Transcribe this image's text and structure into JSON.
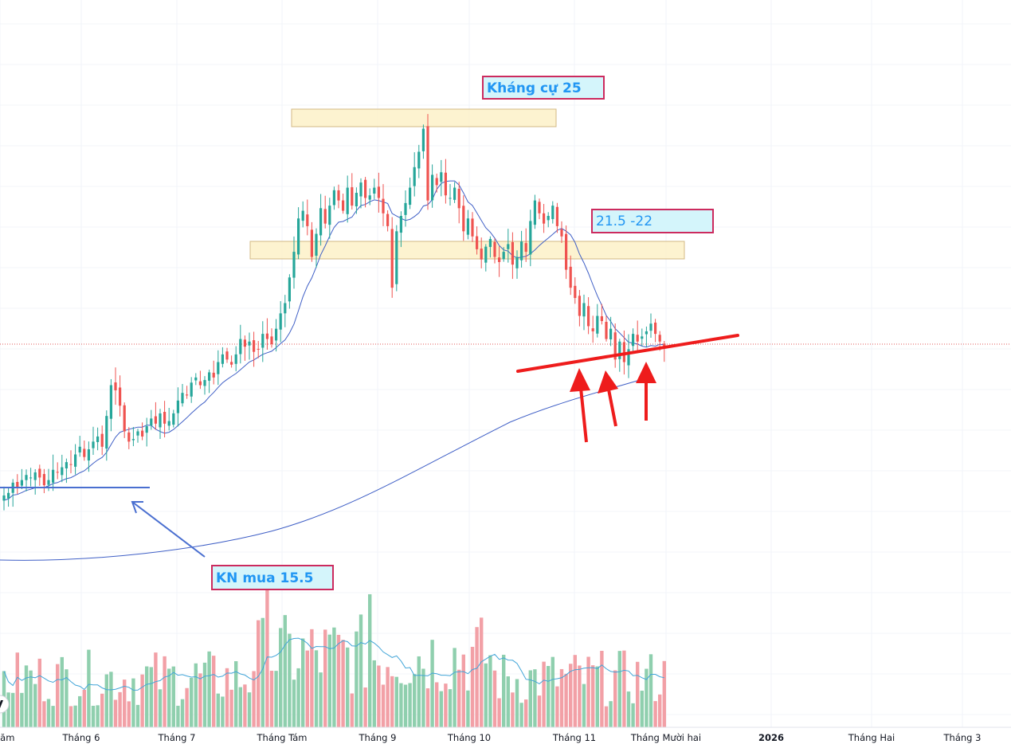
{
  "chart_data": {
    "type": "candlestick",
    "colors": {
      "up": "#26a69a",
      "down": "#ef5350",
      "vol_up": "#8fcfae",
      "vol_down": "#f2a0a6",
      "ma_price": "#3f5fc6",
      "ma_volume": "#42a5d8",
      "zone_fill": "#fdf1c8",
      "zone_border": "#d3b984",
      "label_fill": "#d4f5fb",
      "label_border": "#cc2a5e",
      "trend_red": "#ee1c1c",
      "blue_line": "#4a6fd0"
    },
    "x_axis": {
      "labels": [
        "Năm",
        "Tháng 6",
        "Tháng 7",
        "Tháng Tám",
        "Tháng 9",
        "Tháng 10",
        "Tháng 11",
        "Tháng Mười hai",
        "2026",
        "Tháng Hai",
        "Tháng 3"
      ],
      "bold": [
        "2026"
      ]
    },
    "y_axis": {
      "visible": false,
      "price_range_estimate": [
        12,
        29
      ]
    },
    "price_close": [
      13.1,
      13.2,
      13.6,
      13.4,
      13.7,
      13.9,
      13.8,
      14.0,
      13.8,
      13.5,
      13.7,
      14.1,
      14.0,
      14.2,
      14.4,
      14.3,
      14.7,
      15.0,
      14.6,
      14.9,
      15.2,
      15.4,
      15.0,
      16.2,
      17.4,
      17.2,
      16.6,
      15.6,
      15.2,
      15.3,
      15.6,
      15.4,
      15.8,
      16.1,
      15.9,
      16.3,
      15.9,
      16.0,
      16.3,
      16.8,
      17.1,
      17.0,
      17.5,
      17.7,
      17.4,
      17.6,
      17.9,
      17.7,
      18.3,
      18.6,
      18.4,
      18.2,
      18.6,
      19.2,
      18.9,
      19.1,
      18.7,
      18.8,
      19.4,
      19.2,
      19.0,
      19.6,
      20.2,
      20.6,
      21.6,
      22.6,
      23.9,
      24.2,
      23.6,
      22.4,
      23.3,
      24.3,
      23.7,
      24.4,
      25.0,
      24.6,
      24.2,
      25.1,
      24.4,
      24.9,
      25.3,
      24.7,
      24.8,
      25.1,
      24.7,
      24.1,
      23.6,
      21.2,
      23.4,
      24.0,
      24.5,
      25.1,
      25.9,
      26.5,
      27.4,
      24.6,
      25.6,
      25.2,
      25.7,
      24.8,
      24.7,
      25.1,
      24.3,
      23.4,
      23.9,
      23.2,
      22.7,
      22.3,
      22.8,
      23.1,
      22.4,
      22.2,
      22.6,
      22.9,
      22.1,
      22.4,
      23.0,
      22.6,
      23.8,
      24.6,
      24.1,
      23.7,
      24.0,
      24.4,
      23.6,
      23.2,
      21.9,
      21.2,
      20.8,
      20.1,
      20.6,
      19.7,
      19.5,
      20.1,
      19.9,
      19.2,
      19.6,
      18.4,
      19.1,
      18.3,
      18.8,
      19.4,
      19.1,
      19.3,
      19.5,
      19.8,
      19.4,
      19.1,
      18.9
    ],
    "volume_close_color_follows_candles": true,
    "annotations": {
      "zone_top_label": "Kháng cự 25",
      "zone_mid_label": "21.5 -22",
      "buy_label": "KN mua 15.5"
    }
  }
}
